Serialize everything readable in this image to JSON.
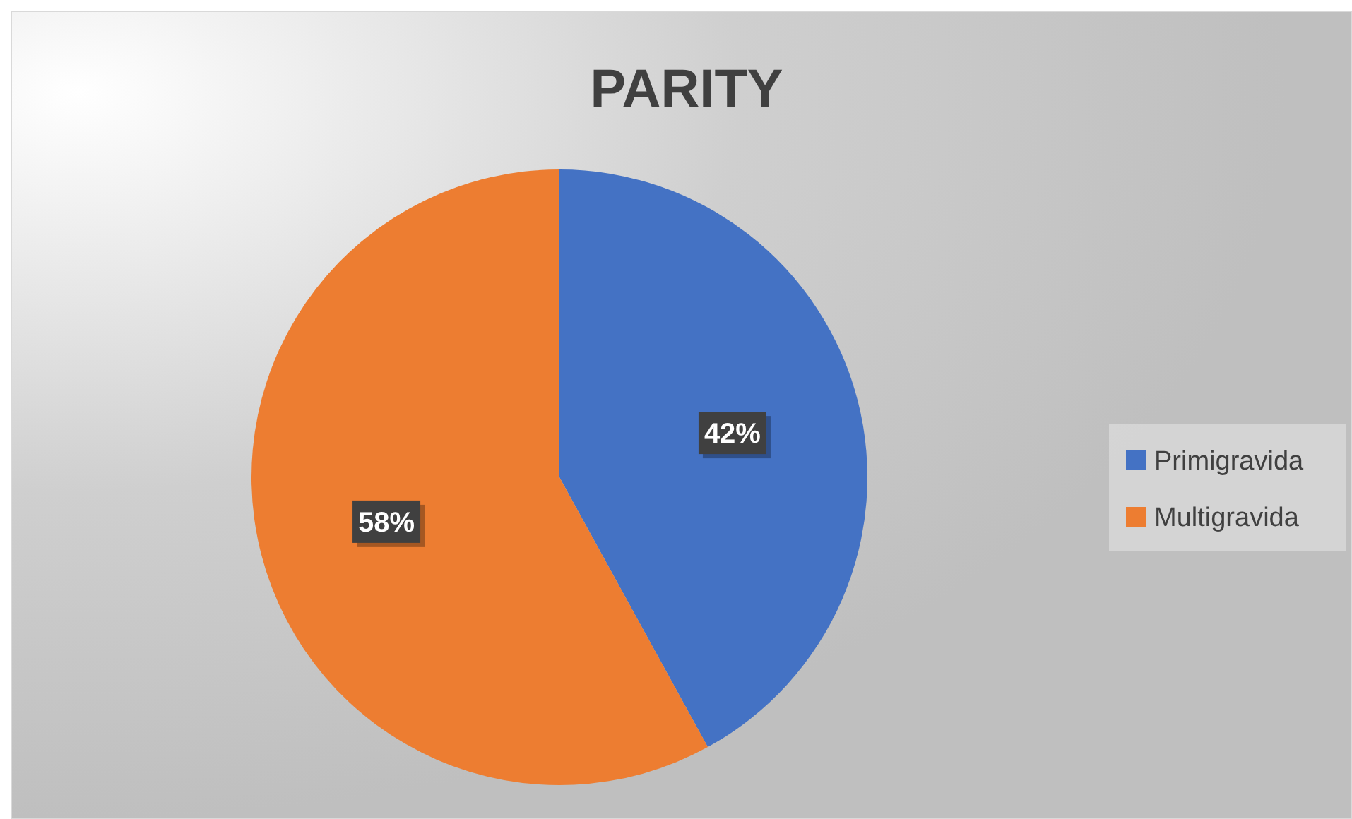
{
  "chart_data": {
    "type": "pie",
    "title": "PARITY",
    "categories": [
      "Primigravida",
      "Multigravida"
    ],
    "values": [
      42,
      58
    ],
    "colors": [
      "#4472c4",
      "#ed7d31"
    ],
    "value_labels": [
      "42%",
      "58%"
    ],
    "legend": "right"
  }
}
